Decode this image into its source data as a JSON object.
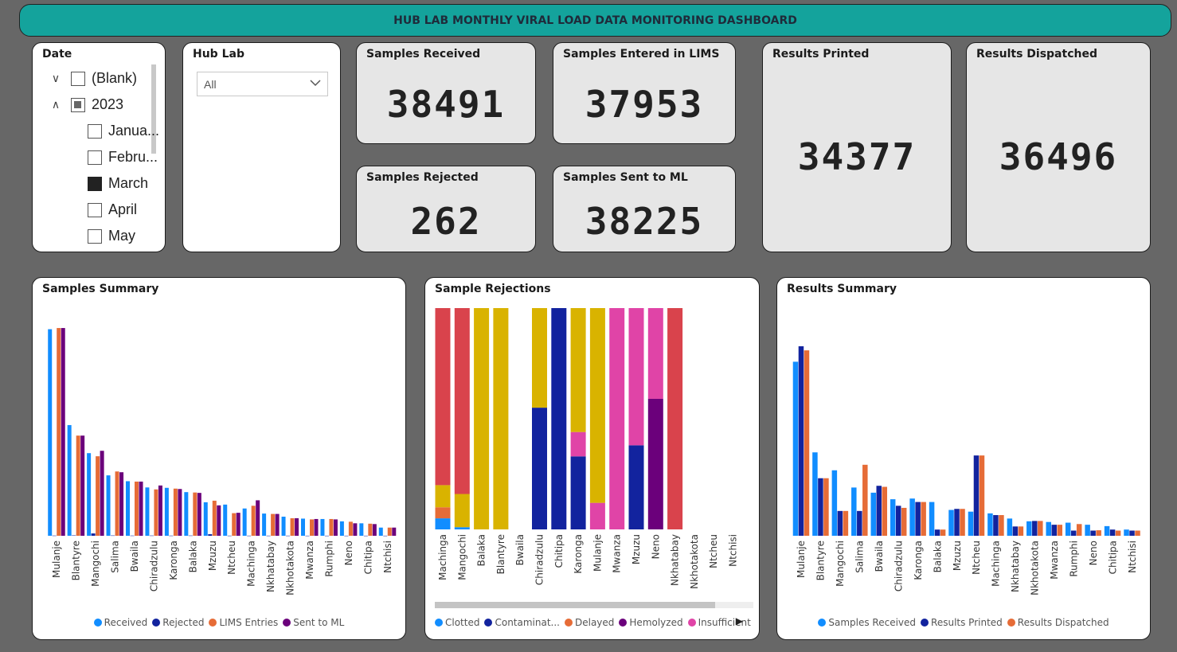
{
  "dashboard_title": "HUB LAB MONTHLY VIRAL LOAD DATA MONITORING DASHBOARD",
  "date_slicer": {
    "title": "Date",
    "items": [
      {
        "label": "(Blank)",
        "state": "unchecked",
        "expander": "expand"
      },
      {
        "label": "2023",
        "state": "partial",
        "expander": "collapse"
      },
      {
        "label": "Janua...",
        "state": "unchecked"
      },
      {
        "label": "Febru...",
        "state": "unchecked"
      },
      {
        "label": "March",
        "state": "checked"
      },
      {
        "label": "April",
        "state": "unchecked"
      },
      {
        "label": "May",
        "state": "unchecked"
      }
    ]
  },
  "hub_lab_slicer": {
    "title": "Hub Lab",
    "selected": "All"
  },
  "kpis": {
    "samples_received": {
      "label": "Samples Received",
      "value": "38491"
    },
    "samples_entered": {
      "label": "Samples Entered in LIMS",
      "value": "37953"
    },
    "samples_rejected": {
      "label": "Samples Rejected",
      "value": "262"
    },
    "samples_sent": {
      "label": "Samples Sent to ML",
      "value": "38225"
    },
    "results_printed": {
      "label": "Results Printed",
      "value": "34377"
    },
    "results_dispatched": {
      "label": "Results Dispatched",
      "value": "36496"
    }
  },
  "colors": {
    "received": "#118dff",
    "rejected": "#12239e",
    "lims": "#e66c37",
    "sent": "#6b007b",
    "clotted": "#118dff",
    "contaminated": "#12239e",
    "delayed": "#e66c37",
    "hemolyzed": "#6b007b",
    "insufficient": "#e044a7",
    "other_red": "#d9434c",
    "other_yellow": "#d9b300"
  },
  "chart_data": [
    {
      "id": "samples_summary",
      "type": "bar",
      "title": "Samples Summary",
      "categories": [
        "Mulanje",
        "Blantyre",
        "Mangochi",
        "Salima",
        "Bwaila",
        "Chiradzulu",
        "Karonga",
        "Balaka",
        "Mzuzu",
        "Ntcheu",
        "Machinga",
        "Nkhatabay",
        "Nkhotakota",
        "Mwanza",
        "Rumphi",
        "Neno",
        "Chitipa",
        "Ntchisi"
      ],
      "series": [
        {
          "name": "Received",
          "color": "#118dff",
          "values": [
            5300,
            2840,
            2120,
            1550,
            1400,
            1240,
            1230,
            1120,
            860,
            800,
            700,
            570,
            490,
            440,
            430,
            370,
            320,
            210
          ]
        },
        {
          "name": "Rejected",
          "color": "#12239e",
          "values": [
            5,
            10,
            60,
            8,
            5,
            6,
            4,
            6,
            40,
            3,
            3,
            3,
            3,
            2,
            2,
            2,
            2,
            2
          ]
        },
        {
          "name": "LIMS Entries",
          "color": "#e66c37",
          "values": [
            5330,
            2570,
            2040,
            1650,
            1390,
            1190,
            1210,
            1110,
            900,
            580,
            770,
            560,
            450,
            420,
            430,
            360,
            310,
            210
          ]
        },
        {
          "name": "Sent to ML",
          "color": "#6b007b",
          "values": [
            5330,
            2570,
            2180,
            1630,
            1390,
            1290,
            1200,
            1100,
            780,
            590,
            910,
            560,
            450,
            430,
            420,
            320,
            300,
            210
          ]
        }
      ]
    },
    {
      "id": "sample_rejections",
      "type": "bar",
      "stacked": "100%",
      "title": "Sample Rejections",
      "categories": [
        "Machinga",
        "Mangochi",
        "Balaka",
        "Blantyre",
        "Bwaila",
        "Chiradzulu",
        "Chitipa",
        "Karonga",
        "Mulanje",
        "Mwanza",
        "Mzuzu",
        "Neno",
        "Nkhatabay",
        "Nkhotakota",
        "Ntcheu",
        "Ntchisi"
      ],
      "legend": [
        "Clotted",
        "Contaminat...",
        "Delayed",
        "Hemolyzed",
        "Insufficient"
      ],
      "stacks": [
        [
          {
            "color": "#118dff",
            "value": 5
          },
          {
            "color": "#e66c37",
            "value": 5
          },
          {
            "color": "#d9b300",
            "value": 10
          },
          {
            "color": "#d9434c",
            "value": 80
          }
        ],
        [
          {
            "color": "#118dff",
            "value": 1
          },
          {
            "color": "#d9b300",
            "value": 15
          },
          {
            "color": "#d9434c",
            "value": 84
          }
        ],
        [
          {
            "color": "#d9b300",
            "value": 100
          }
        ],
        [
          {
            "color": "#d9b300",
            "value": 100
          }
        ],
        [],
        [
          {
            "color": "#12239e",
            "value": 55
          },
          {
            "color": "#d9b300",
            "value": 45
          }
        ],
        [
          {
            "color": "#12239e",
            "value": 100
          }
        ],
        [
          {
            "color": "#12239e",
            "value": 33
          },
          {
            "color": "#e044a7",
            "value": 11
          },
          {
            "color": "#d9b300",
            "value": 56
          }
        ],
        [
          {
            "color": "#e044a7",
            "value": 12
          },
          {
            "color": "#d9b300",
            "value": 88
          }
        ],
        [
          {
            "color": "#e044a7",
            "value": 100
          }
        ],
        [
          {
            "color": "#12239e",
            "value": 38
          },
          {
            "color": "#e044a7",
            "value": 62
          }
        ],
        [
          {
            "color": "#6b007b",
            "value": 59
          },
          {
            "color": "#e044a7",
            "value": 41
          }
        ],
        [
          {
            "color": "#d9434c",
            "value": 100
          }
        ],
        [],
        [],
        []
      ]
    },
    {
      "id": "results_summary",
      "type": "bar",
      "title": "Results Summary",
      "categories": [
        "Mulanje",
        "Blantyre",
        "Mangochi",
        "Salima",
        "Bwaila",
        "Chiradzulu",
        "Karonga",
        "Balaka",
        "Mzuzu",
        "Ntcheu",
        "Machinga",
        "Nkhatabay",
        "Nkhotakota",
        "Mwanza",
        "Rumphi",
        "Neno",
        "Chitipa",
        "Ntchisi"
      ],
      "series": [
        {
          "name": "Samples Received",
          "color": "#118dff",
          "values": [
            5050,
            2420,
            1900,
            1400,
            1250,
            1060,
            1080,
            980,
            750,
            700,
            650,
            500,
            420,
            400,
            380,
            320,
            280,
            180
          ]
        },
        {
          "name": "Results Printed",
          "color": "#12239e",
          "values": [
            5500,
            1670,
            720,
            720,
            1450,
            870,
            980,
            180,
            780,
            2330,
            600,
            270,
            430,
            320,
            150,
            150,
            180,
            150
          ]
        },
        {
          "name": "Results Dispatched",
          "color": "#e66c37",
          "values": [
            5380,
            1670,
            720,
            2060,
            1420,
            810,
            980,
            180,
            780,
            2330,
            600,
            270,
            430,
            320,
            340,
            160,
            150,
            150
          ]
        }
      ]
    }
  ]
}
